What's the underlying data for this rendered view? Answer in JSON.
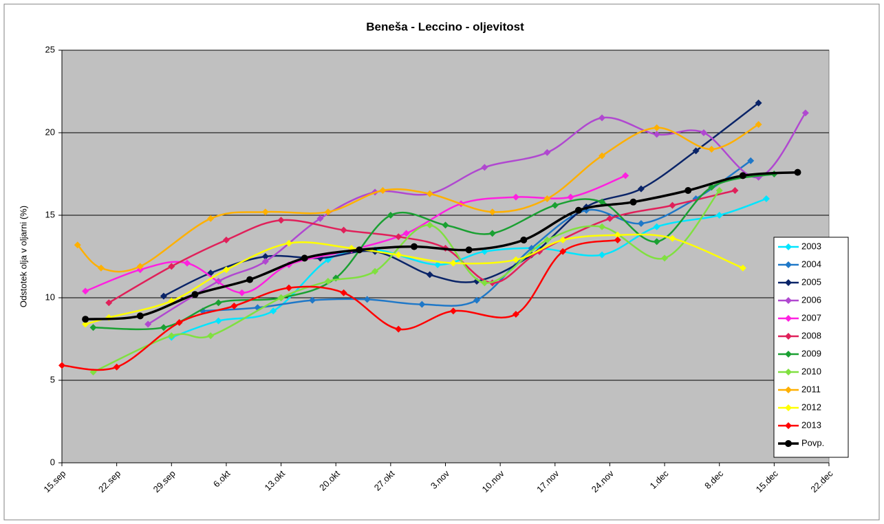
{
  "chart_data": {
    "type": "line",
    "title": "Beneša - Leccino - oljevitost",
    "y_label": "Odstotek olja v oljarni (%)",
    "xlim": [
      "15.sep",
      "22.dec"
    ],
    "xticks": [
      "15.sep",
      "22.sep",
      "29.sep",
      "6.okt",
      "13.okt",
      "20.okt",
      "27.okt",
      "3.nov",
      "10.nov",
      "17.nov",
      "24.nov",
      "1.dec",
      "8.dec",
      "15.dec",
      "22.dec"
    ],
    "ylim": [
      0,
      25
    ],
    "yticks": [
      0,
      5,
      10,
      15,
      20,
      25
    ],
    "grid": true,
    "smooth": true,
    "legend": "right",
    "series": [
      {
        "name": "2003",
        "color": "#00e5ff",
        "marker": "diamond",
        "x": [
          "29.sep",
          "5.okt",
          "12.okt",
          "19.okt",
          "25.okt",
          "2.nov",
          "8.nov",
          "15.nov",
          "23.nov",
          "30.nov",
          "8.dec",
          "14.dec"
        ],
        "values": [
          7.6,
          8.6,
          9.2,
          12.3,
          12.9,
          12.0,
          12.8,
          13.0,
          12.6,
          14.3,
          15.0,
          16.0
        ]
      },
      {
        "name": "2004",
        "color": "#1f78c8",
        "marker": "diamond",
        "x": [
          "3.okt",
          "10.okt",
          "17.okt",
          "24.okt",
          "31.okt",
          "7.nov",
          "14.nov",
          "21.nov",
          "28.nov",
          "5.dec",
          "12.dec"
        ],
        "values": [
          9.2,
          9.4,
          9.85,
          9.9,
          9.6,
          9.85,
          13.0,
          15.3,
          14.5,
          16.0,
          18.3
        ]
      },
      {
        "name": "2005",
        "color": "#0a2468",
        "marker": "diamond",
        "x": [
          "28.sep",
          "4.okt",
          "11.okt",
          "18.okt",
          "25.okt",
          "1.nov",
          "7.nov",
          "14.nov",
          "21.nov",
          "28.nov",
          "5.dec",
          "13.dec"
        ],
        "values": [
          10.1,
          11.5,
          12.5,
          12.4,
          12.8,
          11.4,
          11.0,
          12.6,
          15.5,
          16.6,
          18.9,
          21.8
        ]
      },
      {
        "name": "2006",
        "color": "#b048d0",
        "marker": "diamond",
        "x": [
          "26.sep",
          "5.okt",
          "11.okt",
          "18.okt",
          "25.okt",
          "1.nov",
          "8.nov",
          "16.nov",
          "23.nov",
          "30.nov",
          "6.dec",
          "13.dec",
          "19.dec"
        ],
        "values": [
          8.4,
          11.0,
          12.2,
          14.8,
          16.4,
          16.3,
          17.9,
          18.8,
          20.9,
          19.9,
          20.0,
          17.3,
          21.2
        ]
      },
      {
        "name": "2007",
        "color": "#ff20e0",
        "marker": "diamond",
        "x": [
          "18.sep",
          "25.sep",
          "1.okt",
          "8.okt",
          "14.okt",
          "22.okt",
          "29.okt",
          "5.nov",
          "12.nov",
          "19.nov",
          "26.nov"
        ],
        "values": [
          10.4,
          11.7,
          12.1,
          10.3,
          12.0,
          12.9,
          13.9,
          15.7,
          16.1,
          16.1,
          17.4
        ]
      },
      {
        "name": "2008",
        "color": "#e0205a",
        "marker": "diamond",
        "x": [
          "21.sep",
          "29.sep",
          "6.okt",
          "13.okt",
          "21.okt",
          "28.okt",
          "3.nov",
          "9.nov",
          "15.nov",
          "24.nov",
          "2.dec",
          "10.dec"
        ],
        "values": [
          9.7,
          11.9,
          13.5,
          14.7,
          14.1,
          13.7,
          13.0,
          10.9,
          12.8,
          14.8,
          15.6,
          16.5
        ]
      },
      {
        "name": "2009",
        "color": "#1aa032",
        "marker": "diamond",
        "x": [
          "19.sep",
          "28.sep",
          "5.okt",
          "13.okt",
          "20.okt",
          "27.okt",
          "3.nov",
          "9.nov",
          "17.nov",
          "23.nov",
          "30.nov",
          "7.dec",
          "15.dec"
        ],
        "values": [
          8.2,
          8.2,
          9.7,
          10.0,
          11.2,
          15.0,
          14.4,
          13.9,
          15.6,
          15.8,
          13.4,
          16.7,
          17.5
        ]
      },
      {
        "name": "2010",
        "color": "#80e040",
        "marker": "diamond",
        "x": [
          "19.sep",
          "29.sep",
          "4.okt",
          "13.okt",
          "19.okt",
          "25.okt",
          "1.nov",
          "8.nov",
          "16.nov",
          "23.nov",
          "1.dec",
          "8.dec"
        ],
        "values": [
          5.5,
          7.7,
          7.7,
          10.0,
          11.0,
          11.6,
          14.4,
          10.9,
          13.5,
          14.3,
          12.4,
          16.5
        ]
      },
      {
        "name": "2011",
        "color": "#ffb000",
        "marker": "diamond",
        "x": [
          "17.sep",
          "20.sep",
          "25.sep",
          "4.okt",
          "11.okt",
          "19.okt",
          "26.okt",
          "1.nov",
          "9.nov",
          "16.nov",
          "23.nov",
          "30.nov",
          "7.dec",
          "13.dec"
        ],
        "values": [
          13.2,
          11.8,
          11.9,
          14.8,
          15.2,
          15.2,
          16.5,
          16.3,
          15.2,
          16.0,
          18.6,
          20.3,
          19.0,
          20.5
        ]
      },
      {
        "name": "2012",
        "color": "#ffff00",
        "marker": "diamond",
        "x": [
          "18.sep",
          "21.sep",
          "29.sep",
          "6.okt",
          "14.okt",
          "22.okt",
          "28.okt",
          "4.nov",
          "12.nov",
          "18.nov",
          "25.nov",
          "2.dec",
          "11.dec"
        ],
        "values": [
          8.4,
          8.8,
          9.8,
          11.7,
          13.3,
          13.0,
          12.6,
          12.1,
          12.3,
          13.5,
          13.8,
          13.6,
          11.8
        ]
      },
      {
        "name": "2013",
        "color": "#ff0000",
        "marker": "diamond",
        "x": [
          "15.sep",
          "22.sep",
          "30.sep",
          "7.okt",
          "14.okt",
          "21.okt",
          "28.okt",
          "4.nov",
          "12.nov",
          "18.nov",
          "25.nov"
        ],
        "values": [
          5.9,
          5.8,
          8.5,
          9.5,
          10.6,
          10.3,
          8.1,
          9.2,
          9.0,
          12.8,
          13.5
        ]
      },
      {
        "name": "Povp.",
        "color": "#000000",
        "marker": "circle",
        "x": [
          "18.sep",
          "25.sep",
          "2.okt",
          "9.okt",
          "16.okt",
          "23.okt",
          "30.okt",
          "6.nov",
          "13.nov",
          "20.nov",
          "27.nov",
          "4.dec",
          "11.dec",
          "18.dec"
        ],
        "values": [
          8.7,
          8.9,
          10.2,
          11.1,
          12.4,
          12.9,
          13.1,
          12.9,
          13.5,
          15.3,
          15.8,
          16.5,
          17.4,
          17.6
        ]
      }
    ]
  }
}
